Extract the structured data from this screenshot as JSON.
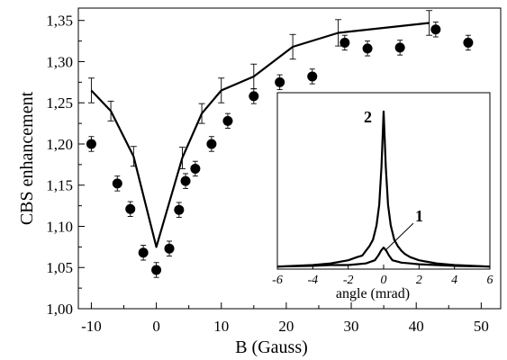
{
  "chart_data": [
    {
      "type": "line",
      "title": "",
      "xlabel": "B (Gauss)",
      "ylabel": "CBS enhancement",
      "xlim": [
        -12,
        53
      ],
      "ylim": [
        1.0,
        1.365
      ],
      "x_ticks": [
        -10,
        0,
        10,
        20,
        30,
        40,
        50
      ],
      "x_tick_labels": [
        "-10",
        "0",
        "10",
        "20",
        "30",
        "40",
        "50"
      ],
      "y_ticks": [
        1.0,
        1.05,
        1.1,
        1.15,
        1.2,
        1.25,
        1.3,
        1.35
      ],
      "y_tick_labels": [
        "1,00",
        "1,05",
        "1,10",
        "1,15",
        "1,20",
        "1,25",
        "1,30",
        "1,35"
      ],
      "grid": false,
      "series": [
        {
          "style": "scatter-markers",
          "x": [
            -10,
            -6,
            -4,
            -2,
            0,
            2,
            3.5,
            4.5,
            6,
            8.5,
            11,
            15,
            19,
            24,
            29,
            32.5,
            37.5,
            43,
            48
          ],
          "y": [
            1.2,
            1.152,
            1.121,
            1.068,
            1.047,
            1.073,
            1.12,
            1.155,
            1.17,
            1.2,
            1.228,
            1.258,
            1.275,
            1.282,
            1.323,
            1.316,
            1.317,
            1.339,
            1.323
          ],
          "yerr": [
            0.009,
            0.009,
            0.009,
            0.009,
            0.009,
            0.009,
            0.009,
            0.009,
            0.009,
            0.009,
            0.009,
            0.009,
            0.009,
            0.009,
            0.009,
            0.009,
            0.009,
            0.009,
            0.009
          ]
        },
        {
          "style": "line-with-errorbars",
          "x": [
            -10,
            -7,
            -3.5,
            0,
            4,
            7,
            10,
            15,
            21,
            28,
            42
          ],
          "y": [
            1.265,
            1.24,
            1.185,
            1.075,
            1.183,
            1.237,
            1.265,
            1.282,
            1.318,
            1.335,
            1.347
          ],
          "yerr": [
            0.015,
            0.012,
            0.012,
            0.0,
            0.013,
            0.012,
            0.015,
            0.015,
            0.015,
            0.016,
            0.015
          ]
        }
      ]
    },
    {
      "type": "line",
      "title": "",
      "xlabel": "angle (mrad)",
      "ylabel": "",
      "xlim": [
        -6,
        6
      ],
      "ylim": [
        0,
        1.0
      ],
      "x_ticks": [
        -6,
        -4,
        -2,
        0,
        2,
        4,
        6
      ],
      "x_tick_labels": [
        "-6",
        "-4",
        "-2",
        "0",
        "2",
        "4",
        "6"
      ],
      "grid": false,
      "series": [
        {
          "name": "2",
          "x": [
            -6,
            -5,
            -4,
            -3,
            -2.5,
            -2,
            -1.5,
            -1.2,
            -1,
            -0.8,
            -0.6,
            -0.4,
            -0.25,
            -0.12,
            0,
            0.12,
            0.25,
            0.4,
            0.6,
            0.8,
            1,
            1.2,
            1.5,
            2,
            2.5,
            3,
            4,
            5,
            6
          ],
          "y": [
            0.01,
            0.015,
            0.02,
            0.03,
            0.04,
            0.05,
            0.07,
            0.08,
            0.11,
            0.14,
            0.18,
            0.27,
            0.4,
            0.64,
            0.99,
            0.64,
            0.4,
            0.27,
            0.18,
            0.14,
            0.11,
            0.09,
            0.07,
            0.05,
            0.04,
            0.03,
            0.02,
            0.015,
            0.01
          ]
        },
        {
          "name": "1",
          "x": [
            -6,
            -4,
            -3,
            -2,
            -1.5,
            -1,
            -0.5,
            -0.3,
            -0.15,
            0,
            0.15,
            0.3,
            0.5,
            1,
            1.5,
            2,
            3,
            4,
            6
          ],
          "y": [
            0.01,
            0.015,
            0.02,
            0.02,
            0.025,
            0.03,
            0.05,
            0.08,
            0.11,
            0.13,
            0.11,
            0.08,
            0.05,
            0.035,
            0.03,
            0.025,
            0.02,
            0.015,
            0.01
          ]
        }
      ]
    }
  ]
}
